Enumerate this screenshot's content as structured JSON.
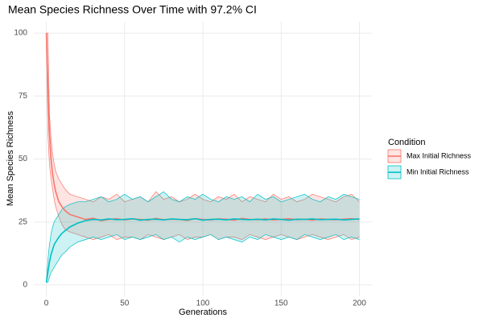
{
  "chart_data": {
    "type": "line",
    "title": "Mean Species Richness Over Time with 97.2% CI",
    "x_label": "Generations",
    "y_label": "Mean Species Richness",
    "legend_title": "Condition",
    "legend_position": "right",
    "grid": true,
    "xlim": [
      -8,
      208
    ],
    "ylim": [
      -4.5,
      104.5
    ],
    "xticks": [
      0,
      50,
      100,
      150,
      200
    ],
    "yticks": [
      0,
      25,
      50,
      75,
      100
    ],
    "x": [
      0,
      1,
      2,
      3,
      4,
      5,
      6,
      8,
      10,
      12,
      15,
      20,
      25,
      30,
      35,
      40,
      45,
      50,
      55,
      60,
      65,
      70,
      75,
      80,
      85,
      90,
      95,
      100,
      105,
      110,
      115,
      120,
      125,
      130,
      135,
      140,
      145,
      150,
      155,
      160,
      165,
      170,
      175,
      180,
      185,
      190,
      195,
      200
    ],
    "series": [
      {
        "name": "Max Initial Richness",
        "color": "#F8766D",
        "values": [
          100,
          78,
          60,
          50,
          44,
          40,
          37,
          33,
          31,
          29.5,
          28,
          27,
          26,
          26.5,
          25.5,
          26,
          26.3,
          25.8,
          26.2,
          26,
          25.7,
          26.4,
          25.9,
          26.1,
          26,
          25.6,
          26.3,
          26,
          25.8,
          26.2,
          26.1,
          25.7,
          26.4,
          26,
          25.9,
          26.2,
          25.8,
          26,
          26.3,
          25.9,
          26.1,
          25.7,
          26.2,
          26,
          25.9,
          26.1,
          26.3,
          26
        ],
        "upper": [
          100,
          100,
          68,
          58,
          52,
          48,
          45,
          42,
          40,
          38,
          36,
          35,
          34,
          33,
          35,
          34,
          36,
          33,
          34,
          35,
          33,
          37,
          34,
          35,
          33,
          34,
          36,
          34,
          33,
          35,
          34,
          36,
          33,
          35,
          34,
          33,
          36,
          34,
          35,
          33,
          34,
          36,
          35,
          34,
          33,
          35,
          36,
          33
        ],
        "lower": [
          100,
          60,
          48,
          42,
          38,
          34,
          31,
          27,
          24,
          22,
          21,
          20,
          19,
          18,
          19,
          20,
          18,
          19,
          19,
          18,
          20,
          19,
          18,
          19,
          20,
          18,
          19,
          19,
          20,
          18,
          19,
          19,
          18,
          20,
          19,
          18,
          19,
          20,
          19,
          18,
          19,
          20,
          19,
          18,
          19,
          20,
          18,
          19
        ]
      },
      {
        "name": "Min Initial Richness",
        "color": "#00BFC4",
        "values": [
          1,
          5,
          9,
          12,
          14,
          16,
          17,
          19,
          20.5,
          21.5,
          23,
          24.5,
          25.5,
          26,
          25.8,
          26.2,
          25.9,
          26,
          26.3,
          25.7,
          26,
          26.1,
          25.8,
          26.2,
          26,
          25.9,
          26.3,
          25.7,
          26,
          26.1,
          25.8,
          26.2,
          26,
          25.9,
          26.1,
          25.8,
          26.2,
          26,
          25.7,
          26.1,
          26,
          26.2,
          25.9,
          26,
          26.1,
          25.8,
          26,
          26.2
        ],
        "upper": [
          1,
          10,
          16,
          20,
          23,
          25,
          26,
          28,
          30,
          31,
          32,
          33,
          33,
          34,
          35,
          33,
          34,
          36,
          34,
          35,
          33,
          35,
          37,
          34,
          33,
          35,
          34,
          36,
          34,
          33,
          35,
          34,
          35,
          33,
          36,
          34,
          35,
          33,
          34,
          35,
          36,
          34,
          33,
          35,
          34,
          36,
          35,
          34
        ],
        "lower": [
          1,
          1,
          3,
          5,
          6,
          7,
          8,
          10,
          12,
          13,
          15,
          17,
          18,
          19,
          18,
          19,
          20,
          18,
          19,
          18,
          19,
          20,
          18,
          19,
          17,
          19,
          18,
          19,
          20,
          18,
          19,
          18,
          17,
          19,
          18,
          20,
          19,
          18,
          19,
          18,
          20,
          19,
          18,
          19,
          20,
          18,
          19,
          18
        ]
      }
    ]
  }
}
